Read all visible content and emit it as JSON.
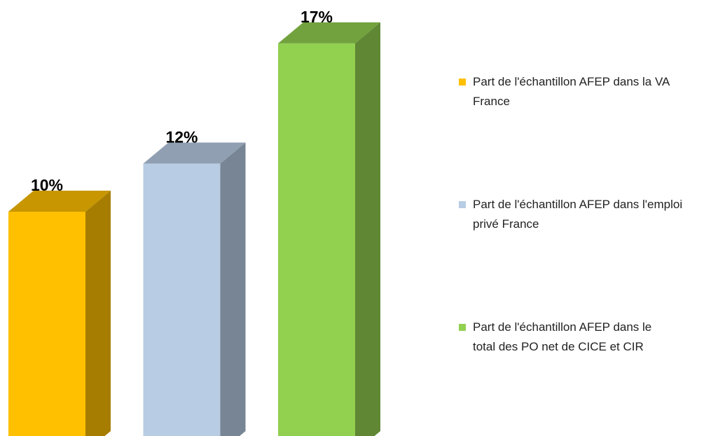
{
  "chart_data": {
    "type": "bar",
    "series": [
      {
        "name": "Part de l'échantillon AFEP dans la VA France",
        "color": "#ffc000",
        "values": [
          10
        ],
        "value_labels": [
          "10%"
        ]
      },
      {
        "name": "Part de l'échantillon AFEP dans l'emploi privé France",
        "color": "#b8cce4",
        "values": [
          12
        ],
        "value_labels": [
          "12%"
        ]
      },
      {
        "name": "Part de l'échantillon AFEP dans le total des PO net de CICE et CIR",
        "color": "#92d050",
        "values": [
          17
        ],
        "value_labels": [
          "17%"
        ]
      }
    ],
    "legend": "right"
  }
}
